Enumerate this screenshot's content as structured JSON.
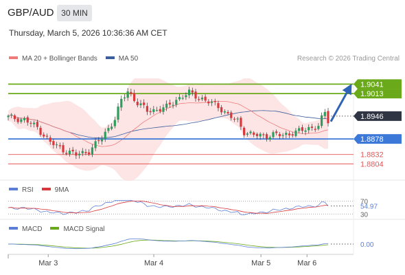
{
  "header": {
    "symbol": "GBP/AUD",
    "timeframe": "30 MIN",
    "datetime": "Thursday, March 5, 2026 10:36:36 AM CET"
  },
  "credit": "Research © 2026 Trading Central",
  "colors": {
    "up_candle": "#2e9e5e",
    "down_candle": "#d9383c",
    "ma20": "#f07a7a",
    "ma50": "#3d5e9c",
    "bollinger_fill": "#fde0e0",
    "resistance": "#6aaa1a",
    "pivot": "#3b78d8",
    "support": "#e45555",
    "arrow": "#2f63b5",
    "rsi": "#5b7fd6",
    "rsi_ma": "#d9383c",
    "macd": "#5b7fd6",
    "macd_signal": "#6aaa1a"
  },
  "chart_data": [
    {
      "type": "candlestick",
      "panel": "price",
      "legend": [
        {
          "label": "MA 20 + Bollinger Bands",
          "color": "#f07a7a"
        },
        {
          "label": "MA 50",
          "color": "#3d5e9c"
        }
      ],
      "ylim": [
        1.877,
        1.905
      ],
      "x_ticks": [
        {
          "label": "Mar 3",
          "t": 0.125
        },
        {
          "label": "Mar 4",
          "t": 0.455
        },
        {
          "label": "Mar 5",
          "t": 0.79
        },
        {
          "label": "Mar 6",
          "t": 0.934
        }
      ],
      "current_price": {
        "label": "1.8946",
        "value": 1.8946
      },
      "levels": [
        {
          "label": "1.9041",
          "value": 1.9041,
          "kind": "resistance"
        },
        {
          "label": "1.9013",
          "value": 1.9013,
          "kind": "resistance"
        },
        {
          "label": "1.8878",
          "value": 1.8878,
          "kind": "pivot"
        },
        {
          "label": "1.8832",
          "value": 1.8832,
          "kind": "support"
        },
        {
          "label": "1.8804",
          "value": 1.8804,
          "kind": "support"
        }
      ],
      "projection": {
        "from": 1.893,
        "to": 1.9041
      }
    },
    {
      "type": "line",
      "panel": "rsi",
      "legend": [
        {
          "label": "RSI",
          "color": "#5b7fd6"
        },
        {
          "label": "9MA",
          "color": "#d9383c"
        }
      ],
      "ylim": [
        20,
        80
      ],
      "ref_levels": [
        70,
        30
      ],
      "tick_labels": [
        "70",
        "30"
      ],
      "current_label": "54.97",
      "current_value": 54.97
    },
    {
      "type": "line",
      "panel": "macd",
      "legend": [
        {
          "label": "MACD",
          "color": "#5b7fd6"
        },
        {
          "label": "MACD Signal",
          "color": "#6aaa1a"
        }
      ],
      "zero_label": "0.00"
    }
  ]
}
